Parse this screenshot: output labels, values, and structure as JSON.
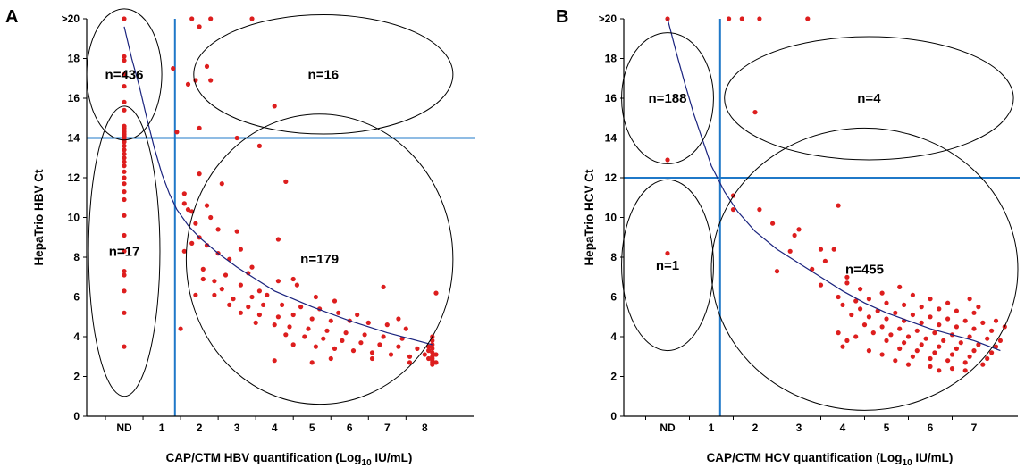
{
  "chart_data": [
    {
      "panel": "A",
      "type": "scatter",
      "xlabel_main": "CAP/CTM HBV quantification (Log",
      "xlabel_sub": "10",
      "xlabel_end": " IU/mL)",
      "ylabel": "HepaTrio HBV Ct",
      "x_ticks": [
        "ND",
        "1",
        "2",
        "3",
        "4",
        "5",
        "6",
        "7",
        "8"
      ],
      "y_ticks": [
        "0",
        "2",
        "4",
        "6",
        "8",
        "10",
        "12",
        "14",
        "16",
        "18",
        ">20"
      ],
      "xlim": [
        -1,
        9.3
      ],
      "ylim": [
        0,
        20
      ],
      "threshold_x": 1.35,
      "threshold_y": 14,
      "regions": [
        {
          "label": "n=436",
          "cx": 0,
          "cy": 17.2,
          "rx": 1.0,
          "ry": 3.3
        },
        {
          "label": "n=16",
          "cx": 5.3,
          "cy": 17.2,
          "rx": 3.45,
          "ry": 3.0
        },
        {
          "label": "n=17",
          "cx": 0,
          "cy": 8.3,
          "rx": 0.95,
          "ry": 7.3
        },
        {
          "label": "n=179",
          "cx": 5.2,
          "cy": 7.9,
          "rx": 3.55,
          "ry": 7.3
        }
      ],
      "fit_curve": [
        [
          0,
          19.6
        ],
        [
          0.2,
          18.0
        ],
        [
          0.4,
          16.6
        ],
        [
          0.6,
          15.0
        ],
        [
          0.8,
          13.5
        ],
        [
          1.0,
          12.2
        ],
        [
          1.2,
          11.2
        ],
        [
          1.4,
          10.4
        ],
        [
          1.7,
          9.6
        ],
        [
          2,
          9.0
        ],
        [
          2.5,
          8.2
        ],
        [
          3,
          7.5
        ],
        [
          3.5,
          6.9
        ],
        [
          4,
          6.3
        ],
        [
          5,
          5.5
        ],
        [
          6,
          4.8
        ],
        [
          7,
          4.2
        ],
        [
          8.2,
          3.6
        ]
      ],
      "points": [
        [
          0,
          20
        ],
        [
          0,
          18.1
        ],
        [
          0,
          17.9
        ],
        [
          0,
          17.2
        ],
        [
          0,
          16.6
        ],
        [
          0,
          15.8
        ],
        [
          0,
          15.4
        ],
        [
          0,
          14.6
        ],
        [
          0,
          14.5
        ],
        [
          0,
          14.4
        ],
        [
          0,
          14.3
        ],
        [
          0,
          14.2
        ],
        [
          0,
          14.1
        ],
        [
          0,
          14.0
        ],
        [
          0,
          13.9
        ],
        [
          0,
          13.8
        ],
        [
          0,
          13.6
        ],
        [
          0,
          13.4
        ],
        [
          0,
          13.2
        ],
        [
          0,
          13.0
        ],
        [
          0,
          12.8
        ],
        [
          0,
          12.6
        ],
        [
          0,
          12.3
        ],
        [
          0,
          12.0
        ],
        [
          0,
          11.7
        ],
        [
          0,
          11.3
        ],
        [
          0,
          10.9
        ],
        [
          0,
          10.1
        ],
        [
          0,
          9.1
        ],
        [
          0,
          8.3
        ],
        [
          0,
          7.3
        ],
        [
          0,
          7.1
        ],
        [
          0,
          6.3
        ],
        [
          0,
          5.2
        ],
        [
          0,
          3.5
        ],
        [
          1.8,
          20
        ],
        [
          2.3,
          20
        ],
        [
          3.4,
          20
        ],
        [
          2.0,
          19.6
        ],
        [
          2.2,
          17.6
        ],
        [
          1.3,
          17.5
        ],
        [
          2.3,
          16.9
        ],
        [
          1.9,
          16.9
        ],
        [
          1.7,
          16.7
        ],
        [
          4.0,
          15.6
        ],
        [
          2.0,
          14.5
        ],
        [
          1.4,
          14.3
        ],
        [
          3.0,
          14.0
        ],
        [
          3.6,
          13.6
        ],
        [
          2.0,
          12.2
        ],
        [
          2.6,
          11.7
        ],
        [
          4.3,
          11.8
        ],
        [
          1.6,
          11.2
        ],
        [
          1.6,
          10.7
        ],
        [
          1.7,
          10.4
        ],
        [
          1.8,
          10.3
        ],
        [
          2.2,
          10.6
        ],
        [
          2.3,
          10.0
        ],
        [
          1.9,
          9.7
        ],
        [
          2.5,
          9.4
        ],
        [
          3.0,
          9.3
        ],
        [
          1.8,
          8.7
        ],
        [
          2.0,
          9.0
        ],
        [
          2.2,
          8.6
        ],
        [
          3.1,
          8.4
        ],
        [
          4.1,
          8.9
        ],
        [
          1.6,
          8.3
        ],
        [
          2.5,
          8.2
        ],
        [
          2.8,
          7.9
        ],
        [
          3.4,
          7.5
        ],
        [
          2.1,
          7.4
        ],
        [
          2.7,
          7.1
        ],
        [
          3.3,
          7.2
        ],
        [
          4.1,
          6.8
        ],
        [
          2.1,
          6.9
        ],
        [
          2.4,
          6.8
        ],
        [
          2.6,
          6.4
        ],
        [
          3.1,
          6.6
        ],
        [
          3.6,
          6.3
        ],
        [
          4.5,
          6.9
        ],
        [
          1.9,
          6.1
        ],
        [
          2.4,
          6.1
        ],
        [
          2.9,
          5.9
        ],
        [
          3.4,
          6.0
        ],
        [
          3.8,
          6.1
        ],
        [
          4.6,
          6.6
        ],
        [
          5.1,
          6.0
        ],
        [
          5.6,
          5.8
        ],
        [
          6.9,
          6.5
        ],
        [
          2.8,
          5.6
        ],
        [
          3.3,
          5.5
        ],
        [
          3.7,
          5.6
        ],
        [
          4.2,
          5.6
        ],
        [
          4.7,
          5.5
        ],
        [
          5.2,
          5.4
        ],
        [
          5.7,
          5.2
        ],
        [
          6.2,
          5.1
        ],
        [
          7.3,
          4.9
        ],
        [
          3.1,
          5.2
        ],
        [
          3.6,
          5.1
        ],
        [
          4.1,
          5.0
        ],
        [
          4.5,
          5.1
        ],
        [
          5.0,
          4.9
        ],
        [
          5.5,
          4.8
        ],
        [
          6.0,
          4.8
        ],
        [
          6.5,
          4.7
        ],
        [
          7.0,
          4.6
        ],
        [
          7.5,
          4.4
        ],
        [
          3.5,
          4.7
        ],
        [
          4.0,
          4.6
        ],
        [
          4.4,
          4.5
        ],
        [
          4.9,
          4.4
        ],
        [
          5.4,
          4.3
        ],
        [
          5.9,
          4.2
        ],
        [
          6.4,
          4.1
        ],
        [
          6.9,
          4.0
        ],
        [
          7.4,
          3.9
        ],
        [
          4.3,
          4.1
        ],
        [
          4.8,
          4.0
        ],
        [
          5.3,
          3.9
        ],
        [
          5.8,
          3.8
        ],
        [
          6.3,
          3.7
        ],
        [
          6.8,
          3.6
        ],
        [
          7.3,
          3.5
        ],
        [
          7.8,
          3.4
        ],
        [
          4.5,
          3.6
        ],
        [
          5.1,
          3.5
        ],
        [
          5.6,
          3.4
        ],
        [
          6.1,
          3.3
        ],
        [
          6.6,
          3.2
        ],
        [
          7.1,
          3.1
        ],
        [
          7.6,
          3.0
        ],
        [
          1.5,
          4.4
        ],
        [
          4.0,
          2.8
        ],
        [
          5.0,
          2.7
        ],
        [
          5.5,
          2.9
        ],
        [
          6.6,
          2.9
        ],
        [
          7.6,
          2.7
        ],
        [
          8.0,
          3.1
        ],
        [
          8.2,
          4.0
        ],
        [
          8.2,
          3.8
        ],
        [
          8.2,
          3.6
        ],
        [
          8.2,
          3.4
        ],
        [
          8.2,
          3.2
        ],
        [
          8.2,
          3.0
        ],
        [
          8.2,
          2.9
        ],
        [
          8.2,
          2.8
        ],
        [
          8.2,
          2.7
        ],
        [
          8.2,
          2.6
        ],
        [
          8.1,
          3.5
        ],
        [
          8.1,
          3.3
        ],
        [
          8.1,
          2.9
        ],
        [
          8.3,
          3.1
        ],
        [
          8.3,
          2.7
        ],
        [
          8.3,
          6.2
        ]
      ]
    },
    {
      "panel": "B",
      "type": "scatter",
      "xlabel_main": "CAP/CTM HCV quantification (Log",
      "xlabel_sub": "10",
      "xlabel_end": " IU/mL)",
      "ylabel": "HepaTrio HCV Ct",
      "x_ticks": [
        "ND",
        "1",
        "2",
        "3",
        "4",
        "5",
        "6",
        "7"
      ],
      "y_ticks": [
        "0",
        "2",
        "4",
        "6",
        "8",
        "10",
        "12",
        "14",
        "16",
        "18",
        ">20"
      ],
      "xlim": [
        -1,
        8.0
      ],
      "ylim": [
        0,
        20
      ],
      "threshold_x": 1.2,
      "threshold_y": 12,
      "regions": [
        {
          "label": "n=188",
          "cx": 0,
          "cy": 16.0,
          "rx": 1.05,
          "ry": 3.3
        },
        {
          "label": "n=4",
          "cx": 4.6,
          "cy": 16.0,
          "rx": 3.3,
          "ry": 3.1
        },
        {
          "label": "n=1",
          "cx": 0,
          "cy": 7.6,
          "rx": 1.05,
          "ry": 4.3
        },
        {
          "label": "n=455",
          "cx": 4.5,
          "cy": 7.4,
          "rx": 3.5,
          "ry": 7.1
        }
      ],
      "fit_curve": [
        [
          0,
          20
        ],
        [
          0.2,
          18.3
        ],
        [
          0.4,
          16.7
        ],
        [
          0.6,
          15.2
        ],
        [
          0.8,
          13.9
        ],
        [
          1.0,
          12.6
        ],
        [
          1.3,
          11.3
        ],
        [
          1.6,
          10.3
        ],
        [
          2,
          9.3
        ],
        [
          2.5,
          8.4
        ],
        [
          3,
          7.7
        ],
        [
          3.5,
          7.0
        ],
        [
          4,
          6.3
        ],
        [
          4.5,
          5.7
        ],
        [
          5,
          5.2
        ],
        [
          5.5,
          4.8
        ],
        [
          6,
          4.4
        ],
        [
          6.5,
          4.1
        ],
        [
          7,
          3.8
        ],
        [
          7.6,
          3.3
        ]
      ],
      "points": [
        [
          0,
          20
        ],
        [
          0,
          12.9
        ],
        [
          0,
          8.2
        ],
        [
          1.4,
          20
        ],
        [
          1.7,
          20
        ],
        [
          2.1,
          20
        ],
        [
          3.2,
          20
        ],
        [
          2.0,
          15.3
        ],
        [
          1.5,
          11.1
        ],
        [
          1.5,
          10.4
        ],
        [
          2.1,
          10.4
        ],
        [
          3.9,
          10.6
        ],
        [
          2.4,
          9.7
        ],
        [
          3.0,
          9.4
        ],
        [
          2.9,
          9.1
        ],
        [
          3.5,
          8.4
        ],
        [
          3.8,
          8.4
        ],
        [
          2.8,
          8.3
        ],
        [
          2.5,
          7.3
        ],
        [
          3.3,
          7.4
        ],
        [
          3.6,
          7.8
        ],
        [
          4.1,
          7.0
        ],
        [
          4.1,
          6.7
        ],
        [
          3.5,
          6.6
        ],
        [
          4.4,
          6.4
        ],
        [
          4.9,
          6.2
        ],
        [
          5.3,
          6.5
        ],
        [
          5.6,
          6.1
        ],
        [
          6.0,
          5.9
        ],
        [
          6.4,
          5.7
        ],
        [
          6.9,
          5.9
        ],
        [
          7.1,
          5.5
        ],
        [
          3.9,
          6.0
        ],
        [
          4.3,
          5.8
        ],
        [
          4.6,
          5.9
        ],
        [
          5.0,
          5.7
        ],
        [
          5.4,
          5.6
        ],
        [
          5.8,
          5.5
        ],
        [
          6.2,
          5.4
        ],
        [
          6.6,
          5.3
        ],
        [
          7.0,
          5.2
        ],
        [
          4.0,
          5.6
        ],
        [
          4.4,
          5.4
        ],
        [
          4.8,
          5.3
        ],
        [
          5.2,
          5.2
        ],
        [
          5.6,
          5.1
        ],
        [
          6.0,
          5.0
        ],
        [
          6.4,
          4.9
        ],
        [
          6.8,
          4.8
        ],
        [
          7.2,
          4.7
        ],
        [
          4.2,
          5.1
        ],
        [
          4.6,
          5.0
        ],
        [
          5.0,
          4.9
        ],
        [
          5.4,
          4.8
        ],
        [
          5.8,
          4.7
        ],
        [
          6.2,
          4.6
        ],
        [
          6.6,
          4.5
        ],
        [
          7.0,
          4.4
        ],
        [
          7.4,
          4.3
        ],
        [
          4.5,
          4.6
        ],
        [
          4.9,
          4.5
        ],
        [
          5.3,
          4.4
        ],
        [
          5.7,
          4.3
        ],
        [
          6.1,
          4.2
        ],
        [
          6.5,
          4.1
        ],
        [
          6.9,
          4.0
        ],
        [
          7.3,
          3.9
        ],
        [
          4.7,
          4.2
        ],
        [
          5.1,
          4.1
        ],
        [
          5.5,
          4.0
        ],
        [
          5.9,
          3.9
        ],
        [
          6.3,
          3.8
        ],
        [
          6.7,
          3.7
        ],
        [
          7.1,
          3.6
        ],
        [
          7.5,
          3.5
        ],
        [
          5.0,
          3.8
        ],
        [
          5.4,
          3.7
        ],
        [
          5.8,
          3.6
        ],
        [
          6.2,
          3.5
        ],
        [
          6.6,
          3.4
        ],
        [
          7.0,
          3.3
        ],
        [
          7.4,
          3.2
        ],
        [
          5.3,
          3.4
        ],
        [
          5.7,
          3.3
        ],
        [
          6.1,
          3.2
        ],
        [
          6.5,
          3.1
        ],
        [
          6.9,
          3.0
        ],
        [
          7.3,
          2.9
        ],
        [
          5.6,
          3.0
        ],
        [
          6.0,
          2.9
        ],
        [
          6.4,
          2.8
        ],
        [
          6.8,
          2.7
        ],
        [
          7.2,
          2.6
        ],
        [
          6.0,
          2.5
        ],
        [
          6.5,
          2.4
        ],
        [
          6.8,
          2.3
        ],
        [
          4.3,
          4.0
        ],
        [
          4.1,
          3.8
        ],
        [
          4.0,
          3.5
        ],
        [
          3.9,
          4.2
        ],
        [
          4.6,
          3.3
        ],
        [
          4.9,
          3.1
        ],
        [
          5.2,
          2.8
        ],
        [
          5.5,
          2.6
        ],
        [
          6.2,
          2.3
        ],
        [
          7.6,
          3.8
        ],
        [
          7.7,
          4.5
        ],
        [
          7.5,
          4.8
        ]
      ]
    }
  ]
}
